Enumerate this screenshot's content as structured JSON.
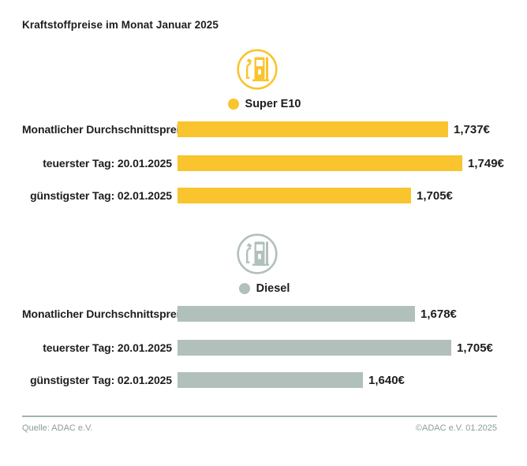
{
  "title": "Kraftstoffpreise im Monat Januar 2025",
  "colors": {
    "super_e10_yellow": "#F9C42D",
    "diesel_gray": "#B1C0BA",
    "text": "#1D1D1B",
    "footer_gray": "#8C9C96",
    "divider_gray": "#9FB3AC"
  },
  "footer": {
    "source": "Quelle: ADAC e.V.",
    "copyright": "©ADAC e.V. 01.2025"
  },
  "chart_data": [
    {
      "type": "bar",
      "orientation": "horizontal",
      "series_name": "Super E10",
      "icon": "fuel-pump-icon",
      "color": "#F9C42D",
      "categories": [
        "Monatlicher Durchschnittspreis",
        "teuerster Tag: 20.01.2025",
        "günstigster Tag: 02.01.2025"
      ],
      "values": [
        1.737,
        1.749,
        1.705
      ],
      "value_labels": [
        "1,737€",
        "1,749€",
        "1,705€"
      ],
      "xlim": [
        1.505,
        1.749
      ],
      "grid": false,
      "legend_position": "top-center"
    },
    {
      "type": "bar",
      "orientation": "horizontal",
      "series_name": "Diesel",
      "icon": "fuel-pump-icon",
      "color": "#B1C0BA",
      "categories": [
        "Monatlicher Durchschnittspreis",
        "teuerster Tag: 20.01.2025",
        "günstigster Tag: 02.01.2025"
      ],
      "values": [
        1.678,
        1.705,
        1.64
      ],
      "value_labels": [
        "1,678€",
        "1,705€",
        "1,640€"
      ],
      "xlim": [
        1.503,
        1.705
      ],
      "grid": false,
      "legend_position": "top-center"
    }
  ]
}
